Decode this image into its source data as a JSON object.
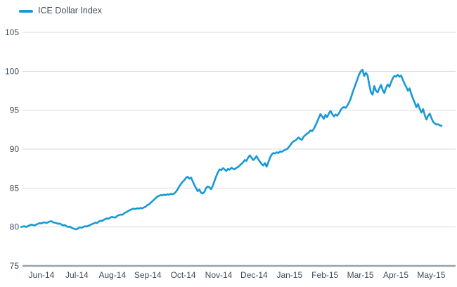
{
  "legend": {
    "label": "ICE Dollar Index"
  },
  "chart_data": {
    "type": "line",
    "title": "",
    "legend_position": "top-left",
    "grid": "horizontal",
    "x_tick_labels": [
      "Jun-14",
      "Jul-14",
      "Aug-14",
      "Sep-14",
      "Oct-14",
      "Nov-14",
      "Dec-14",
      "Jan-15",
      "Feb-15",
      "Mar-15",
      "Apr-15",
      "May-15"
    ],
    "y_tick_labels": [
      105,
      100,
      95,
      90,
      85,
      80,
      75
    ],
    "ylim": [
      75,
      105
    ],
    "colors": {
      "line": "#1899d6",
      "text": "#3d4c5a",
      "gridline": "#d9d9d9",
      "axis_line": "#98a2ac",
      "background": "#ffffff"
    },
    "series": [
      {
        "name": "ICE Dollar Index",
        "values": [
          80.0,
          80.05,
          80.1,
          80.0,
          80.1,
          80.2,
          80.3,
          80.25,
          80.2,
          80.3,
          80.4,
          80.5,
          80.45,
          80.55,
          80.6,
          80.5,
          80.6,
          80.7,
          80.75,
          80.6,
          80.55,
          80.5,
          80.4,
          80.45,
          80.3,
          80.2,
          80.25,
          80.1,
          80.0,
          80.05,
          79.9,
          79.8,
          79.75,
          79.7,
          79.85,
          79.95,
          79.9,
          80.0,
          80.1,
          80.05,
          80.15,
          80.25,
          80.35,
          80.45,
          80.55,
          80.5,
          80.65,
          80.8,
          80.75,
          80.9,
          81.0,
          81.1,
          81.05,
          81.2,
          81.3,
          81.25,
          81.2,
          81.4,
          81.5,
          81.6,
          81.55,
          81.7,
          81.85,
          81.95,
          82.1,
          82.2,
          82.3,
          82.35,
          82.3,
          82.4,
          82.35,
          82.45,
          82.4,
          82.5,
          82.6,
          82.8,
          82.9,
          83.1,
          83.3,
          83.5,
          83.7,
          83.9,
          84.0,
          84.1,
          84.05,
          84.15,
          84.1,
          84.2,
          84.15,
          84.25,
          84.2,
          84.3,
          84.5,
          84.8,
          85.2,
          85.5,
          85.8,
          86.0,
          86.3,
          86.45,
          86.2,
          86.35,
          85.9,
          85.4,
          85.0,
          84.6,
          84.8,
          84.4,
          84.3,
          84.5,
          85.0,
          85.2,
          85.1,
          84.85,
          85.3,
          85.9,
          86.5,
          87.0,
          87.4,
          87.3,
          87.55,
          87.4,
          87.2,
          87.45,
          87.35,
          87.6,
          87.5,
          87.4,
          87.6,
          87.7,
          87.9,
          88.1,
          88.3,
          88.6,
          88.5,
          88.9,
          89.2,
          88.9,
          88.6,
          88.8,
          89.1,
          88.7,
          88.4,
          88.1,
          87.9,
          88.2,
          87.75,
          88.3,
          88.9,
          89.3,
          89.5,
          89.45,
          89.6,
          89.5,
          89.7,
          89.65,
          89.8,
          89.9,
          90.0,
          90.2,
          90.5,
          90.8,
          91.0,
          91.1,
          91.3,
          91.5,
          91.3,
          91.2,
          91.6,
          91.8,
          92.0,
          92.1,
          92.4,
          92.3,
          92.6,
          93.0,
          93.5,
          94.0,
          94.5,
          94.2,
          93.9,
          94.4,
          94.1,
          94.6,
          94.9,
          94.5,
          94.2,
          94.45,
          94.3,
          94.6,
          95.0,
          95.3,
          95.4,
          95.3,
          95.6,
          96.0,
          96.5,
          97.2,
          97.8,
          98.4,
          99.0,
          99.6,
          100.0,
          100.2,
          99.4,
          99.8,
          99.5,
          98.3,
          97.3,
          97.0,
          98.1,
          97.5,
          97.3,
          97.8,
          98.25,
          97.6,
          97.2,
          97.9,
          98.3,
          98.0,
          98.6,
          99.1,
          99.4,
          99.3,
          99.55,
          99.3,
          99.45,
          98.9,
          98.4,
          98.0,
          97.5,
          97.8,
          97.1,
          96.5,
          96.0,
          95.4,
          95.8,
          95.2,
          94.7,
          95.15,
          94.4,
          93.8,
          94.3,
          94.55,
          94.0,
          93.5,
          93.3,
          93.15,
          93.2,
          93.05,
          93.0
        ]
      }
    ]
  }
}
